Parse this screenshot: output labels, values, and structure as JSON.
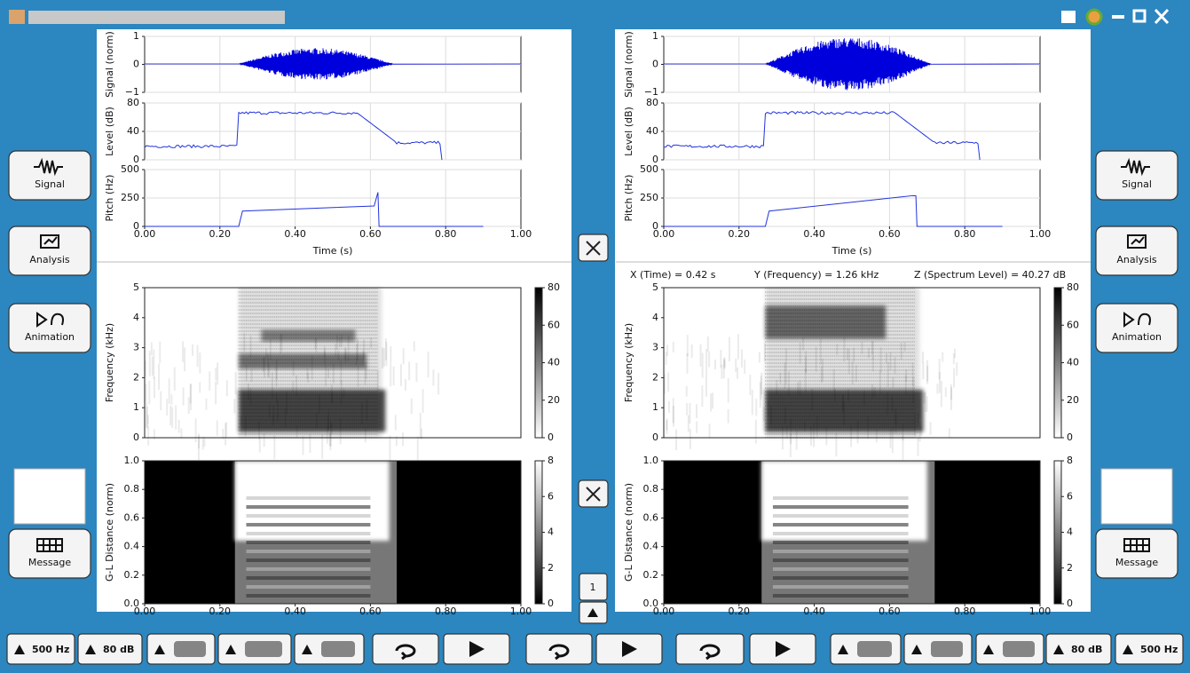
{
  "side_buttons": {
    "signal": "Signal",
    "analysis": "Analysis",
    "animation": "Animation",
    "message": "Message"
  },
  "panels": [
    {
      "signal": {
        "ylabel": "Signal (norm)",
        "yticks": [
          "1",
          "0",
          "−1"
        ]
      },
      "level": {
        "ylabel": "Level (dB)",
        "yticks": [
          "80",
          "40",
          "0"
        ]
      },
      "pitch": {
        "ylabel": "Pitch (Hz)",
        "yticks": [
          "500",
          "250",
          "0"
        ]
      },
      "xticks": [
        "0.00",
        "0.20",
        "0.40",
        "0.60",
        "0.80",
        "1.00"
      ],
      "xlabel": "Time (s)",
      "spectrogram": {
        "ylabel": "Frequency (kHz)",
        "yticks": [
          "5",
          "4",
          "3",
          "2",
          "1",
          "0"
        ],
        "cbar_ticks": [
          "80",
          "60",
          "40",
          "20",
          "0"
        ]
      },
      "gl": {
        "ylabel": "G-L Distance (norm)",
        "yticks": [
          "1.0",
          "0.8",
          "0.6",
          "0.4",
          "0.2",
          "0.0"
        ],
        "cbar_ticks": [
          "8",
          "6",
          "4",
          "2",
          "0"
        ],
        "xticks": [
          "0.00",
          "0.20",
          "0.40",
          "0.60",
          "0.80",
          "1.00"
        ]
      }
    },
    {
      "signal": {
        "ylabel": "Signal (norm)",
        "yticks": [
          "1",
          "0",
          "−1"
        ]
      },
      "level": {
        "ylabel": "Level (dB)",
        "yticks": [
          "80",
          "40",
          "0"
        ]
      },
      "pitch": {
        "ylabel": "Pitch (Hz)",
        "yticks": [
          "500",
          "250",
          "0"
        ]
      },
      "xticks": [
        "0.00",
        "0.20",
        "0.40",
        "0.60",
        "0.80",
        "1.00"
      ],
      "xlabel": "Time (s)",
      "readout": [
        "X (Time) =  0.42 s",
        "Y (Frequency) =  1.26 kHz",
        "Z (Spectrum Level) = 40.27 dB"
      ],
      "spectrogram": {
        "ylabel": "Frequency (kHz)",
        "yticks": [
          "5",
          "4",
          "3",
          "2",
          "1",
          "0"
        ],
        "cbar_ticks": [
          "80",
          "60",
          "40",
          "20",
          "0"
        ]
      },
      "gl": {
        "ylabel": "G-L Distance (norm)",
        "yticks": [
          "1.0",
          "0.8",
          "0.6",
          "0.4",
          "0.2",
          "0.0"
        ],
        "cbar_ticks": [
          "8",
          "6",
          "4",
          "2",
          "0"
        ],
        "xticks": [
          "0.00",
          "0.20",
          "0.40",
          "0.60",
          "0.80",
          "1.00"
        ]
      }
    }
  ],
  "page_number": "1",
  "toolbar": {
    "left_freq": "500 Hz",
    "left_level": "80 dB",
    "right_level": "80 dB",
    "right_freq": "500 Hz"
  }
}
